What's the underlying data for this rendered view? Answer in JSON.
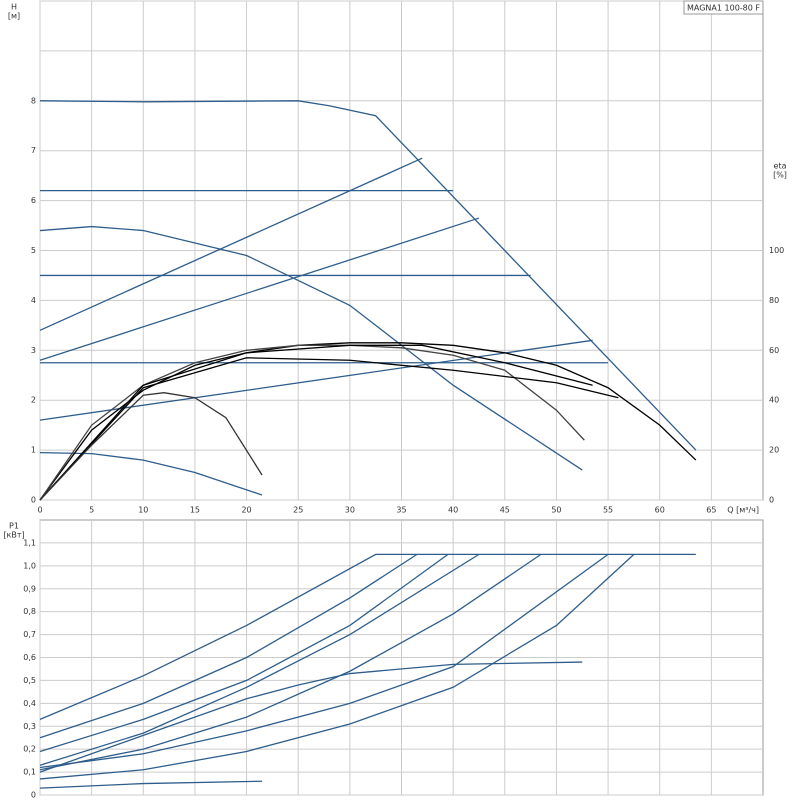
{
  "chart_data": [
    {
      "type": "line",
      "title": "MAGNA1 100-80 F",
      "xlabel": "Q [м³/ч]",
      "ylabel": "H",
      "yunit": "[м]",
      "y2label": "eta",
      "y2unit": "[%]",
      "xlim": [
        0,
        70
      ],
      "xticks": [
        0,
        5,
        10,
        15,
        20,
        25,
        30,
        35,
        40,
        45,
        50,
        55,
        60,
        65
      ],
      "xtick_labels": true,
      "ylim": [
        0,
        10
      ],
      "yticks": [
        0,
        1,
        2,
        3,
        4,
        5,
        6,
        7,
        8
      ],
      "ygrid": [
        9,
        10
      ],
      "y2lim": [
        0,
        200
      ],
      "y2ticks": [
        0,
        20,
        40,
        60,
        80,
        100
      ],
      "grid": true,
      "series": [
        {
          "color": "#2e5d8c",
          "x": [
            0,
            10,
            25,
            28,
            32.5,
            63.5
          ],
          "values": [
            8,
            7.98,
            8,
            7.9,
            7.7,
            1.0
          ]
        },
        {
          "color": "#2e5d8c",
          "x": [
            0,
            40
          ],
          "values": [
            6.2,
            6.2
          ]
        },
        {
          "color": "#2e5d8c",
          "x": [
            0,
            47.5
          ],
          "values": [
            4.5,
            4.5
          ]
        },
        {
          "color": "#2e5d8c",
          "x": [
            0,
            55
          ],
          "values": [
            2.75,
            2.75
          ]
        },
        {
          "color": "#2e5d8c",
          "x": [
            0,
            37
          ],
          "values": [
            3.4,
            6.85
          ]
        },
        {
          "color": "#2e5d8c",
          "x": [
            0,
            42.5
          ],
          "values": [
            2.8,
            5.65
          ]
        },
        {
          "color": "#2e5d8c",
          "x": [
            0,
            53.5
          ],
          "values": [
            1.6,
            3.2
          ]
        },
        {
          "color": "#2e5d8c",
          "x": [
            0,
            5,
            10,
            20,
            30,
            40,
            52.5
          ],
          "values": [
            5.4,
            5.48,
            5.4,
            4.9,
            3.9,
            2.3,
            0.6
          ]
        },
        {
          "color": "#2e5d8c",
          "x": [
            0,
            5,
            10,
            15,
            21.5
          ],
          "values": [
            0.95,
            0.93,
            0.8,
            0.55,
            0.1
          ]
        },
        {
          "color": "#000000",
          "axis": "y2",
          "x": [
            0,
            5,
            10,
            15,
            20,
            25,
            30,
            35,
            40,
            45,
            50,
            55,
            60,
            63.5
          ],
          "values": [
            0,
            28,
            44,
            54,
            59,
            62,
            63,
            63,
            62,
            59,
            54,
            45,
            30,
            16
          ]
        },
        {
          "color": "#444444",
          "axis": "y2",
          "x": [
            0,
            5,
            10,
            15,
            20,
            25,
            30,
            35,
            40,
            45,
            50,
            52.7
          ],
          "values": [
            0,
            30,
            46,
            55,
            60,
            62,
            62,
            61,
            58,
            52,
            36,
            24
          ]
        },
        {
          "color": "#000000",
          "axis": "y2",
          "x": [
            0,
            10,
            20,
            30,
            40,
            50,
            56
          ],
          "values": [
            0,
            45,
            57,
            56,
            52,
            47,
            41
          ]
        },
        {
          "color": "#000000",
          "axis": "y2",
          "x": [
            0,
            10,
            20,
            30,
            37,
            45,
            53.5
          ],
          "values": [
            0,
            46,
            59,
            62,
            62,
            55,
            46
          ]
        },
        {
          "color": "#333333",
          "axis": "y2",
          "x": [
            0,
            5,
            10,
            12,
            15,
            18,
            21.5
          ],
          "values": [
            0,
            22,
            42,
            43,
            41,
            33,
            10
          ]
        }
      ]
    },
    {
      "type": "line",
      "ylabel": "P1",
      "yunit": "[кВт]",
      "xlim": [
        0,
        70
      ],
      "xticks": [
        0,
        5,
        10,
        15,
        20,
        25,
        30,
        35,
        40,
        45,
        50,
        55,
        60,
        65
      ],
      "xtick_labels": false,
      "ylim": [
        0,
        1.2
      ],
      "grid": true,
      "yticks": [
        0,
        {
          "value": 0.1,
          "label": "0,1"
        },
        {
          "value": 0.2,
          "label": "0,2"
        },
        {
          "value": 0.3,
          "label": "0,3"
        },
        {
          "value": 0.4,
          "label": "0,4"
        },
        {
          "value": 0.5,
          "label": "0,5"
        },
        {
          "value": 0.6,
          "label": "0,6"
        },
        {
          "value": 0.7,
          "label": "0,7"
        },
        {
          "value": 0.8,
          "label": "0,8"
        },
        {
          "value": 0.9,
          "label": "0,9"
        },
        {
          "value": 1.0,
          "label": "1,0"
        },
        {
          "value": 1.1,
          "label": "1,1"
        }
      ],
      "series": [
        {
          "color": "#2e5d8c",
          "x": [
            0,
            10,
            20,
            32.5,
            63.5
          ],
          "values": [
            0.33,
            0.52,
            0.74,
            1.05,
            1.05
          ]
        },
        {
          "color": "#2e5d8c",
          "x": [
            0,
            10,
            20,
            30,
            36.5
          ],
          "values": [
            0.25,
            0.4,
            0.6,
            0.86,
            1.05
          ]
        },
        {
          "color": "#2e5d8c",
          "x": [
            0,
            10,
            20,
            30,
            39.5
          ],
          "values": [
            0.19,
            0.33,
            0.5,
            0.74,
            1.05
          ]
        },
        {
          "color": "#2e5d8c",
          "x": [
            0,
            10,
            20,
            30,
            42.5
          ],
          "values": [
            0.13,
            0.27,
            0.47,
            0.7,
            1.05
          ]
        },
        {
          "color": "#2e5d8c",
          "x": [
            0,
            10,
            20,
            30,
            40,
            48.5
          ],
          "values": [
            0.11,
            0.2,
            0.34,
            0.54,
            0.79,
            1.05
          ]
        },
        {
          "color": "#2e5d8c",
          "x": [
            0,
            10,
            20,
            30,
            40,
            55
          ],
          "values": [
            0.12,
            0.18,
            0.28,
            0.4,
            0.56,
            1.05
          ]
        },
        {
          "color": "#2e5d8c",
          "x": [
            0,
            10,
            20,
            30,
            40,
            50,
            57.5
          ],
          "values": [
            0.07,
            0.11,
            0.19,
            0.31,
            0.47,
            0.74,
            1.05
          ]
        },
        {
          "color": "#2e5d8c",
          "x": [
            0,
            10,
            20,
            25,
            30,
            40,
            52.5
          ],
          "values": [
            0.1,
            0.26,
            0.42,
            0.48,
            0.53,
            0.57,
            0.58
          ]
        },
        {
          "color": "#2e5d8c",
          "x": [
            0,
            10,
            21.5
          ],
          "values": [
            0.03,
            0.05,
            0.06
          ]
        }
      ]
    }
  ]
}
